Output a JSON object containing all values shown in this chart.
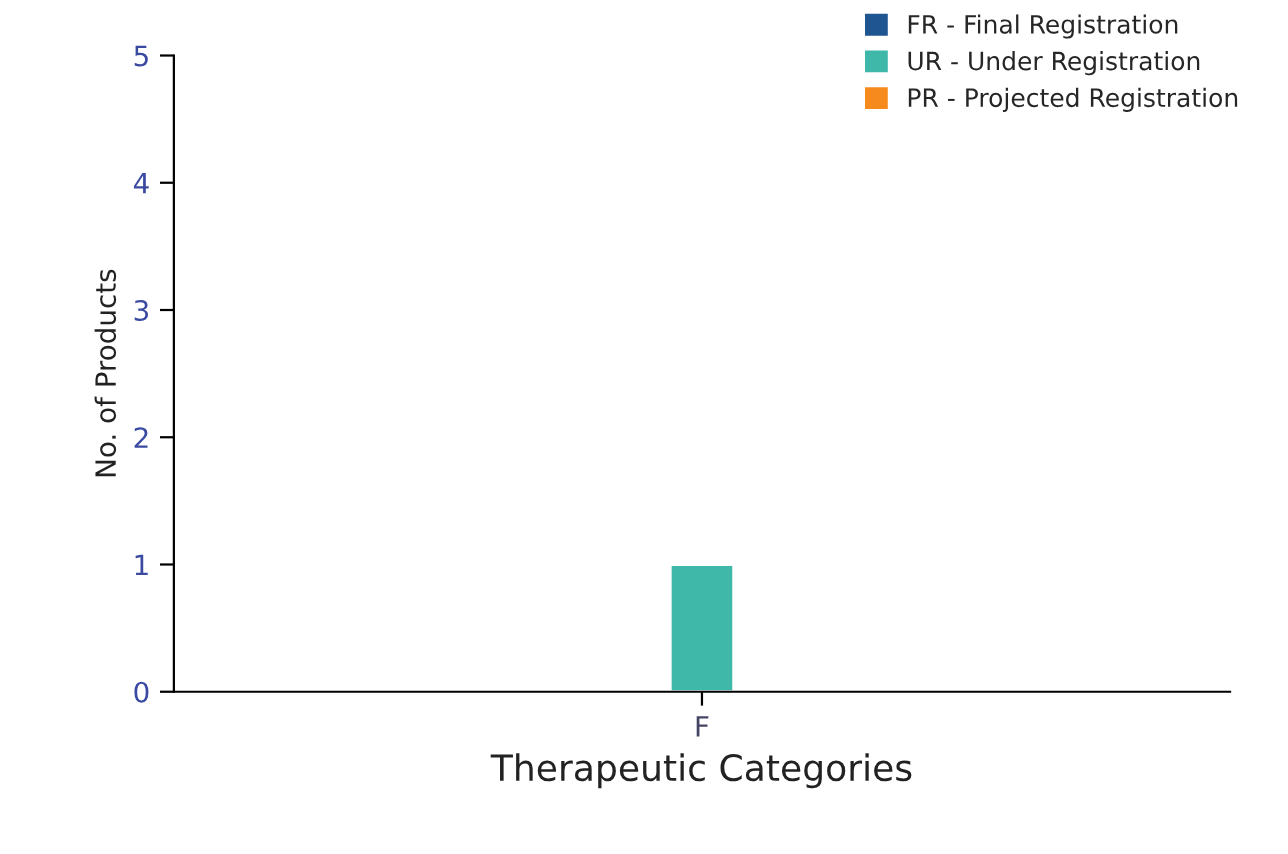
{
  "chart_data": {
    "type": "bar",
    "xlabel": "Therapeutic Categories",
    "ylabel": "No. of Products",
    "categories": [
      "F"
    ],
    "series": [
      {
        "name": "FR - Final Registration",
        "color": "#1f5591",
        "values": [
          0
        ]
      },
      {
        "name": "UR - Under Registration",
        "color": "#3fb8aa",
        "values": [
          1
        ]
      },
      {
        "name": "PR - Projected Registration",
        "color": "#f78a1d",
        "values": [
          0
        ]
      }
    ],
    "ylim": [
      0,
      5
    ],
    "yticks": [
      0,
      1,
      2,
      3,
      4,
      5
    ],
    "grid": false,
    "legend": "top right"
  }
}
